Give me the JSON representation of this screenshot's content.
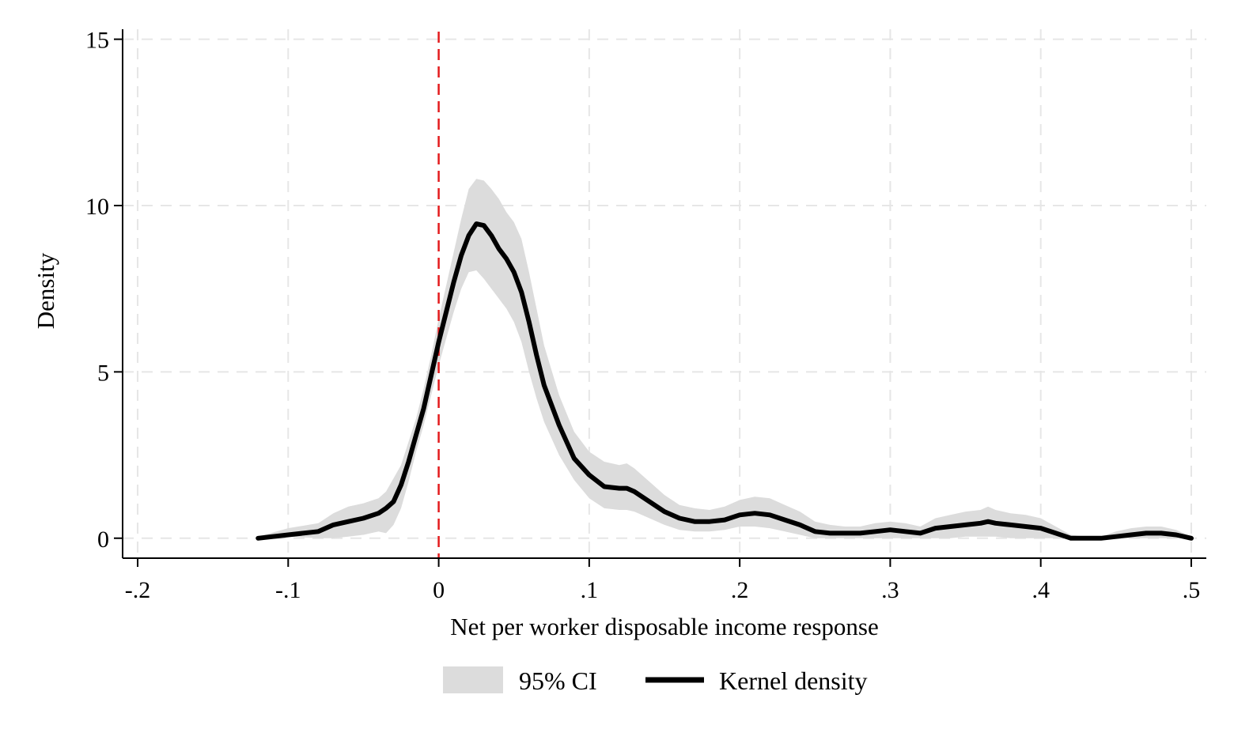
{
  "chart_data": {
    "type": "area",
    "title": "",
    "xlabel": "Net per worker disposable income response",
    "ylabel": "Density",
    "xlim": [
      -0.21,
      0.51
    ],
    "ylim": [
      -0.6,
      15.3
    ],
    "x_ticks": [
      -0.2,
      -0.1,
      0,
      0.1,
      0.2,
      0.3,
      0.4,
      0.5
    ],
    "x_tick_labels": [
      "-.2",
      "-.1",
      "0",
      ".1",
      ".2",
      ".3",
      ".4",
      ".5"
    ],
    "y_ticks": [
      0,
      5,
      10,
      15
    ],
    "y_tick_labels": [
      "0",
      "5",
      "10",
      "15"
    ],
    "grid": true,
    "reference_line": {
      "x": 0,
      "color": "#e31a1c",
      "style": "dashed"
    },
    "legend": {
      "placement": "bottom",
      "entries": [
        {
          "label": "95% CI",
          "kind": "band",
          "color": "#dcdcdc"
        },
        {
          "label": "Kernel density",
          "kind": "line",
          "color": "#000000"
        }
      ]
    },
    "series": [
      {
        "name": "Kernel density",
        "x": [
          -0.12,
          -0.1,
          -0.08,
          -0.07,
          -0.06,
          -0.05,
          -0.04,
          -0.035,
          -0.03,
          -0.025,
          -0.02,
          -0.015,
          -0.01,
          -0.005,
          0,
          0.005,
          0.01,
          0.015,
          0.02,
          0.025,
          0.03,
          0.035,
          0.04,
          0.045,
          0.05,
          0.055,
          0.06,
          0.065,
          0.07,
          0.08,
          0.09,
          0.1,
          0.11,
          0.12,
          0.125,
          0.13,
          0.14,
          0.15,
          0.16,
          0.17,
          0.18,
          0.19,
          0.2,
          0.21,
          0.22,
          0.23,
          0.24,
          0.25,
          0.26,
          0.27,
          0.28,
          0.29,
          0.3,
          0.31,
          0.32,
          0.33,
          0.34,
          0.35,
          0.36,
          0.365,
          0.37,
          0.38,
          0.39,
          0.4,
          0.41,
          0.42,
          0.43,
          0.44,
          0.45,
          0.46,
          0.47,
          0.48,
          0.49,
          0.5
        ],
        "y": [
          0.0,
          0.1,
          0.2,
          0.4,
          0.5,
          0.6,
          0.75,
          0.9,
          1.1,
          1.6,
          2.3,
          3.1,
          3.9,
          4.9,
          5.9,
          6.8,
          7.7,
          8.5,
          9.1,
          9.45,
          9.4,
          9.1,
          8.7,
          8.4,
          8.0,
          7.4,
          6.5,
          5.5,
          4.6,
          3.4,
          2.4,
          1.9,
          1.55,
          1.5,
          1.5,
          1.4,
          1.1,
          0.8,
          0.6,
          0.5,
          0.5,
          0.55,
          0.7,
          0.75,
          0.7,
          0.55,
          0.4,
          0.2,
          0.15,
          0.15,
          0.15,
          0.2,
          0.25,
          0.2,
          0.15,
          0.3,
          0.35,
          0.4,
          0.45,
          0.5,
          0.45,
          0.4,
          0.35,
          0.3,
          0.15,
          0.0,
          0.0,
          0.0,
          0.05,
          0.1,
          0.15,
          0.15,
          0.1,
          0.0
        ]
      },
      {
        "name": "95% CI",
        "x": [
          -0.12,
          -0.1,
          -0.08,
          -0.07,
          -0.06,
          -0.05,
          -0.04,
          -0.035,
          -0.03,
          -0.025,
          -0.02,
          -0.015,
          -0.01,
          -0.005,
          0,
          0.005,
          0.01,
          0.015,
          0.02,
          0.025,
          0.03,
          0.035,
          0.04,
          0.045,
          0.05,
          0.055,
          0.06,
          0.065,
          0.07,
          0.08,
          0.09,
          0.1,
          0.11,
          0.12,
          0.125,
          0.13,
          0.14,
          0.15,
          0.16,
          0.17,
          0.18,
          0.19,
          0.2,
          0.21,
          0.22,
          0.23,
          0.24,
          0.25,
          0.26,
          0.27,
          0.28,
          0.29,
          0.3,
          0.31,
          0.32,
          0.33,
          0.34,
          0.35,
          0.36,
          0.365,
          0.37,
          0.38,
          0.39,
          0.4,
          0.41,
          0.42,
          0.43,
          0.44,
          0.45,
          0.46,
          0.47,
          0.48,
          0.49,
          0.5
        ],
        "lower": [
          0.0,
          0.05,
          0.0,
          0.0,
          0.05,
          0.1,
          0.2,
          0.15,
          0.4,
          0.9,
          1.7,
          2.6,
          3.4,
          4.3,
          5.2,
          6.0,
          6.8,
          7.5,
          8.0,
          8.05,
          7.8,
          7.5,
          7.2,
          6.9,
          6.5,
          5.9,
          5.0,
          4.2,
          3.5,
          2.5,
          1.75,
          1.2,
          0.9,
          0.85,
          0.85,
          0.8,
          0.6,
          0.4,
          0.25,
          0.2,
          0.2,
          0.25,
          0.35,
          0.35,
          0.3,
          0.2,
          0.1,
          0.0,
          0.0,
          0.0,
          0.0,
          0.0,
          0.0,
          0.0,
          0.0,
          0.0,
          0.0,
          0.05,
          0.05,
          0.05,
          0.05,
          0.0,
          0.0,
          0.0,
          0.0,
          0.0,
          0.0,
          0.0,
          0.0,
          0.0,
          0.0,
          0.0,
          0.0,
          0.0
        ],
        "upper": [
          0.05,
          0.3,
          0.45,
          0.75,
          0.95,
          1.05,
          1.2,
          1.4,
          1.8,
          2.2,
          2.9,
          3.6,
          4.5,
          5.5,
          6.6,
          7.6,
          8.6,
          9.6,
          10.5,
          10.8,
          10.75,
          10.5,
          10.2,
          9.8,
          9.5,
          9.0,
          8.0,
          6.9,
          5.8,
          4.3,
          3.2,
          2.6,
          2.3,
          2.2,
          2.25,
          2.1,
          1.7,
          1.3,
          1.0,
          0.9,
          0.85,
          0.95,
          1.15,
          1.25,
          1.2,
          1.0,
          0.8,
          0.5,
          0.4,
          0.35,
          0.35,
          0.45,
          0.5,
          0.45,
          0.35,
          0.6,
          0.7,
          0.8,
          0.85,
          0.95,
          0.85,
          0.75,
          0.7,
          0.6,
          0.35,
          0.1,
          0.05,
          0.05,
          0.2,
          0.3,
          0.35,
          0.35,
          0.25,
          0.05
        ]
      }
    ]
  }
}
